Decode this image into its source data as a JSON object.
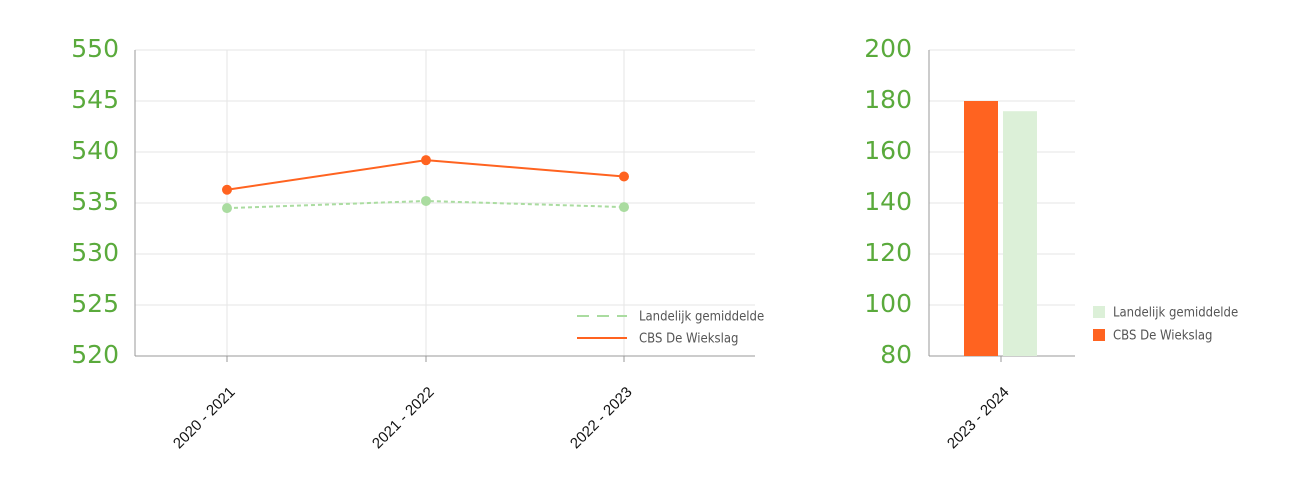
{
  "colors": {
    "axis_tick": "#5aaa3c",
    "orange": "#ff6320",
    "green_line": "#aadca0",
    "green_bar": "#dcf0d8",
    "grid": "#e6e6e6",
    "axis": "#999999"
  },
  "chart_data": [
    {
      "type": "line",
      "categories": [
        "2020 - 2021",
        "2021 - 2022",
        "2022 - 2023"
      ],
      "series": [
        {
          "name": "Landelijk gemiddelde",
          "values": [
            534.5,
            535.2,
            534.6
          ],
          "style": "dashed"
        },
        {
          "name": "CBS De Wiekslag",
          "values": [
            536.3,
            539.2,
            537.6
          ],
          "style": "solid"
        }
      ],
      "ylim": [
        520,
        550
      ],
      "yticks": [
        "550",
        "545",
        "540",
        "535",
        "530",
        "525",
        "520"
      ],
      "grid": true,
      "legend": "bottom-right"
    },
    {
      "type": "bar",
      "categories": [
        "2023 - 2024"
      ],
      "series": [
        {
          "name": "CBS De Wiekslag",
          "values": [
            180
          ]
        },
        {
          "name": "Landelijk gemiddelde",
          "values": [
            176
          ]
        }
      ],
      "legend_order": [
        "Landelijk gemiddelde",
        "CBS De Wiekslag"
      ],
      "ylim": [
        80,
        200
      ],
      "yticks": [
        "200",
        "180",
        "160",
        "140",
        "120",
        "100",
        "80"
      ],
      "grid": true,
      "legend": "right"
    }
  ]
}
